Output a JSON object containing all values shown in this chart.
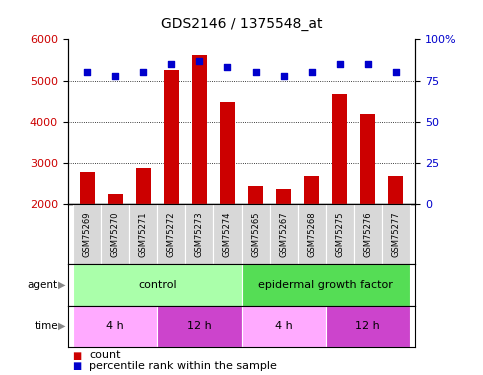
{
  "title": "GDS2146 / 1375548_at",
  "samples": [
    "GSM75269",
    "GSM75270",
    "GSM75271",
    "GSM75272",
    "GSM75273",
    "GSM75274",
    "GSM75265",
    "GSM75267",
    "GSM75268",
    "GSM75275",
    "GSM75276",
    "GSM75277"
  ],
  "counts": [
    2780,
    2250,
    2870,
    5250,
    5620,
    4480,
    2440,
    2370,
    2680,
    4680,
    4180,
    2690
  ],
  "percentiles": [
    80,
    78,
    80,
    85,
    87,
    83,
    80,
    78,
    80,
    85,
    85,
    80
  ],
  "ylim": [
    2000,
    6000
  ],
  "y2lim": [
    0,
    100
  ],
  "yticks": [
    2000,
    3000,
    4000,
    5000,
    6000
  ],
  "y2ticks": [
    0,
    25,
    50,
    75,
    100
  ],
  "bar_color": "#cc0000",
  "dot_color": "#0000cc",
  "agent_row": [
    {
      "label": "control",
      "start": 0,
      "end": 6,
      "color": "#aaffaa"
    },
    {
      "label": "epidermal growth factor",
      "start": 6,
      "end": 12,
      "color": "#55dd55"
    }
  ],
  "time_row": [
    {
      "label": "4 h",
      "start": 0,
      "end": 3,
      "color": "#ffaaff"
    },
    {
      "label": "12 h",
      "start": 3,
      "end": 6,
      "color": "#cc44cc"
    },
    {
      "label": "4 h",
      "start": 6,
      "end": 9,
      "color": "#ffaaff"
    },
    {
      "label": "12 h",
      "start": 9,
      "end": 12,
      "color": "#cc44cc"
    }
  ],
  "title_fontsize": 10,
  "tick_fontsize": 8,
  "sample_fontsize": 6,
  "row_fontsize": 8,
  "legend_fontsize": 8,
  "bar_width": 0.55
}
